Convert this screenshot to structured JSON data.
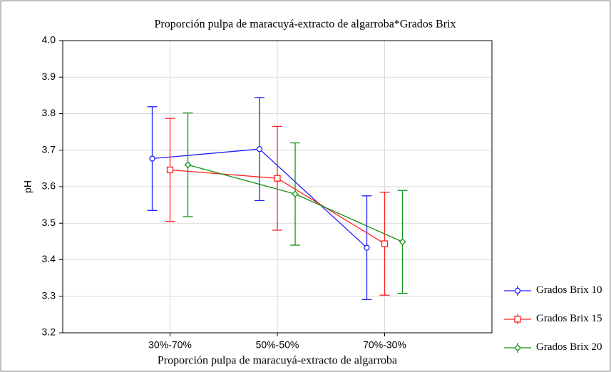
{
  "chart_data": {
    "type": "errorbar-line",
    "title": "Proporción pulpa de maracuyá-extracto de algarroba*Grados Brix",
    "x_label": "Proporción pulpa de maracuyá-extracto de algarroba",
    "y_label": "pH",
    "categories": [
      "30%-70%",
      "50%-50%",
      "70%-30%"
    ],
    "ylim": [
      3.2,
      4.0
    ],
    "yticks": [
      3.2,
      3.3,
      3.4,
      3.5,
      3.6,
      3.7,
      3.8,
      3.9,
      {
        "value": 4.0,
        "label": "4.0"
      }
    ],
    "grid": true,
    "series": [
      {
        "name": "Grados Brix 10",
        "color": "#1f1fff",
        "marker": "circle",
        "values": [
          3.677,
          3.703,
          3.433
        ],
        "errors": [
          0.142,
          0.141,
          0.142
        ]
      },
      {
        "name": "Grados Brix 15",
        "color": "#ff2020",
        "marker": "square",
        "values": [
          3.646,
          3.623,
          3.444
        ],
        "errors": [
          0.141,
          0.142,
          0.141
        ]
      },
      {
        "name": "Grados Brix 20",
        "color": "#139113",
        "marker": "diamond",
        "values": [
          3.66,
          3.58,
          3.449
        ],
        "errors": [
          0.142,
          0.14,
          0.141
        ]
      }
    ]
  }
}
